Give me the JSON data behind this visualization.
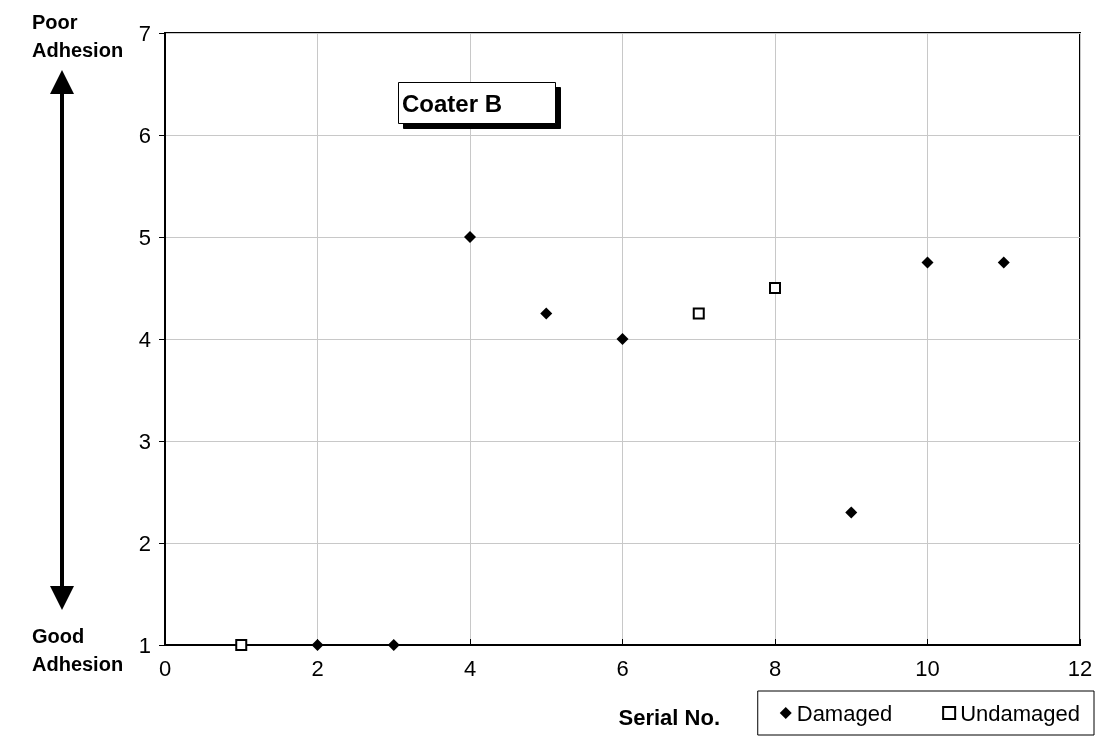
{
  "chart_data": {
    "type": "scatter",
    "title": "Coater B",
    "xlabel": "Serial No.",
    "annotations": [
      "Poor Adhesion",
      "Good Adhesion"
    ],
    "series": [
      {
        "name": "Damaged",
        "color": "#000000",
        "marker": "diamond",
        "x": [
          2,
          3,
          4,
          5,
          6,
          9,
          10,
          11
        ],
        "values": [
          1,
          1,
          5,
          4.25,
          4,
          2.3,
          4.75,
          4.75
        ]
      },
      {
        "name": "Undamaged",
        "color": "#ffffff",
        "marker": "square",
        "x": [
          1,
          7,
          8
        ],
        "values": [
          1,
          4.25,
          4.5
        ]
      }
    ],
    "xlim": [
      0,
      12
    ],
    "xticks": [
      0,
      2,
      4,
      6,
      8,
      10,
      12
    ],
    "ylim": [
      1,
      7
    ],
    "yticks": [
      1,
      2,
      3,
      4,
      5,
      6,
      7
    ],
    "grid": true,
    "legend": "bottom right"
  }
}
